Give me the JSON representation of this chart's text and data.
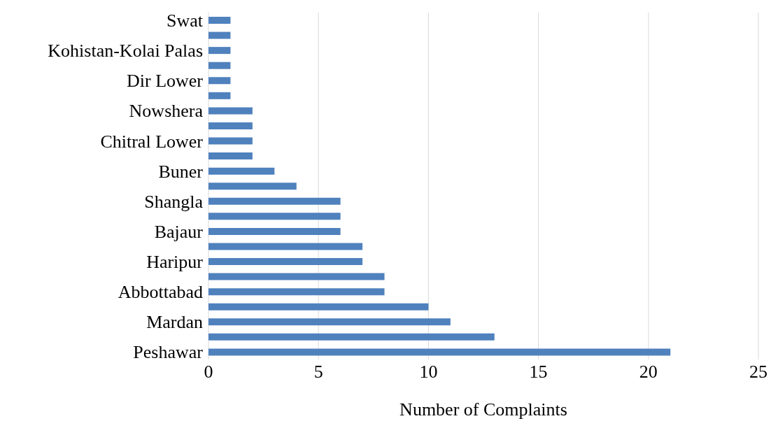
{
  "chart_data": {
    "type": "bar",
    "orientation": "horizontal",
    "xlabel": "Number of Complaints",
    "categories": [
      "Swat",
      null,
      "Kohistan-Kolai Palas",
      null,
      "Dir Lower",
      null,
      "Nowshera",
      null,
      "Chitral Lower",
      null,
      "Buner",
      null,
      "Shangla",
      null,
      "Bajaur",
      null,
      "Haripur",
      null,
      "Abbottabad",
      null,
      "Mardan",
      null,
      "Peshawar"
    ],
    "values": [
      1,
      1,
      1,
      1,
      1,
      1,
      2,
      2,
      2,
      2,
      3,
      4,
      6,
      6,
      6,
      7,
      7,
      8,
      8,
      10,
      11,
      13,
      21
    ],
    "color": "#4f81bd",
    "xlim": [
      0,
      25
    ],
    "xticks": [
      0,
      5,
      10,
      15,
      20,
      25
    ],
    "grid": "x"
  }
}
